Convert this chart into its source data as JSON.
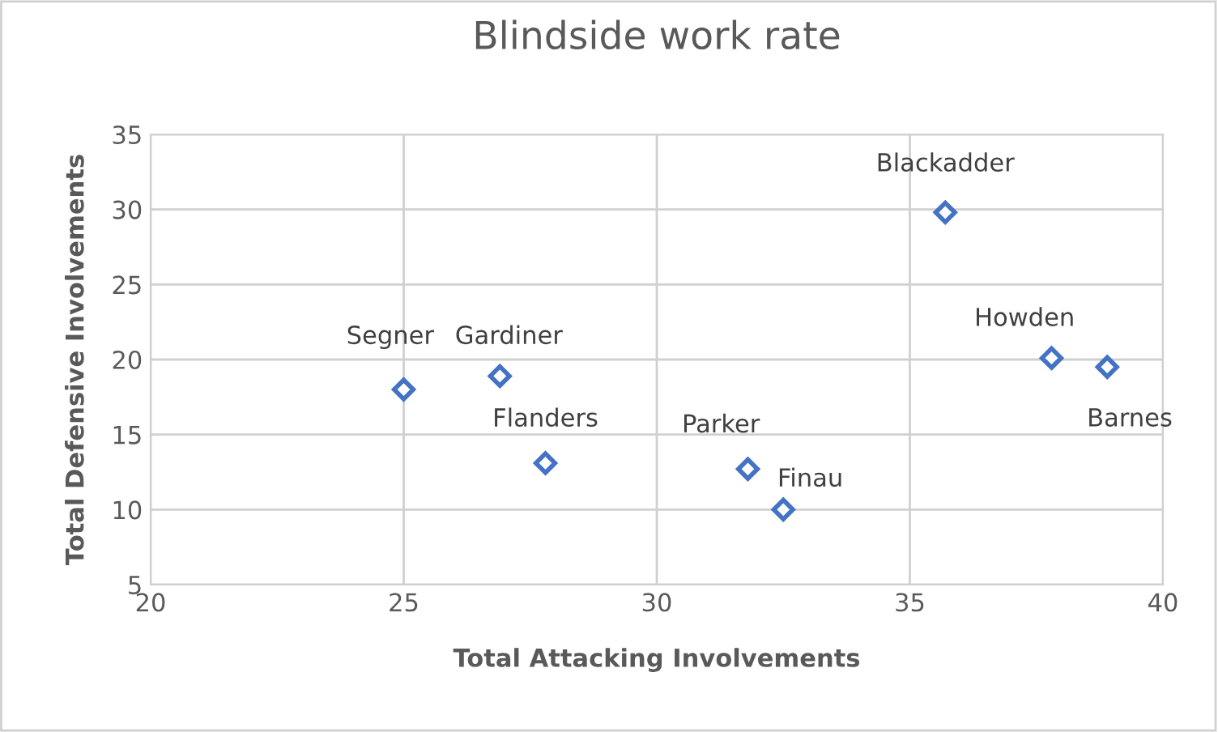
{
  "chart_data": {
    "type": "scatter",
    "title": "Blindside work rate",
    "xlabel": "Total Attacking Involvements",
    "ylabel": "Total Defensive Involvements",
    "x": [
      25.0,
      26.9,
      27.8,
      31.8,
      32.5,
      35.7,
      37.8,
      38.9
    ],
    "series": [
      {
        "color": "#4472c4",
        "values": [
          18.0,
          18.9,
          13.1,
          12.7,
          10.0,
          29.8,
          20.1,
          19.5
        ]
      }
    ],
    "annotations": [
      {
        "text": "Segner",
        "x": 25.0,
        "y": 18.0
      },
      {
        "text": "Gardiner",
        "x": 26.9,
        "y": 18.9
      },
      {
        "text": "Flanders",
        "x": 27.8,
        "y": 13.1
      },
      {
        "text": "Parker",
        "x": 31.8,
        "y": 12.7
      },
      {
        "text": "Finau",
        "x": 32.5,
        "y": 10.0
      },
      {
        "text": "Blackadder",
        "x": 35.7,
        "y": 29.8
      },
      {
        "text": "Howden",
        "x": 37.8,
        "y": 20.1
      },
      {
        "text": "Barnes",
        "x": 38.9,
        "y": 19.5
      }
    ],
    "xlim": [
      20,
      40
    ],
    "xticks": [
      20,
      25,
      30,
      35,
      40
    ],
    "ylim": [
      5,
      35
    ],
    "yticks": [
      5,
      10,
      15,
      20,
      25,
      30,
      35
    ],
    "grid": true,
    "marker": "diamond"
  }
}
